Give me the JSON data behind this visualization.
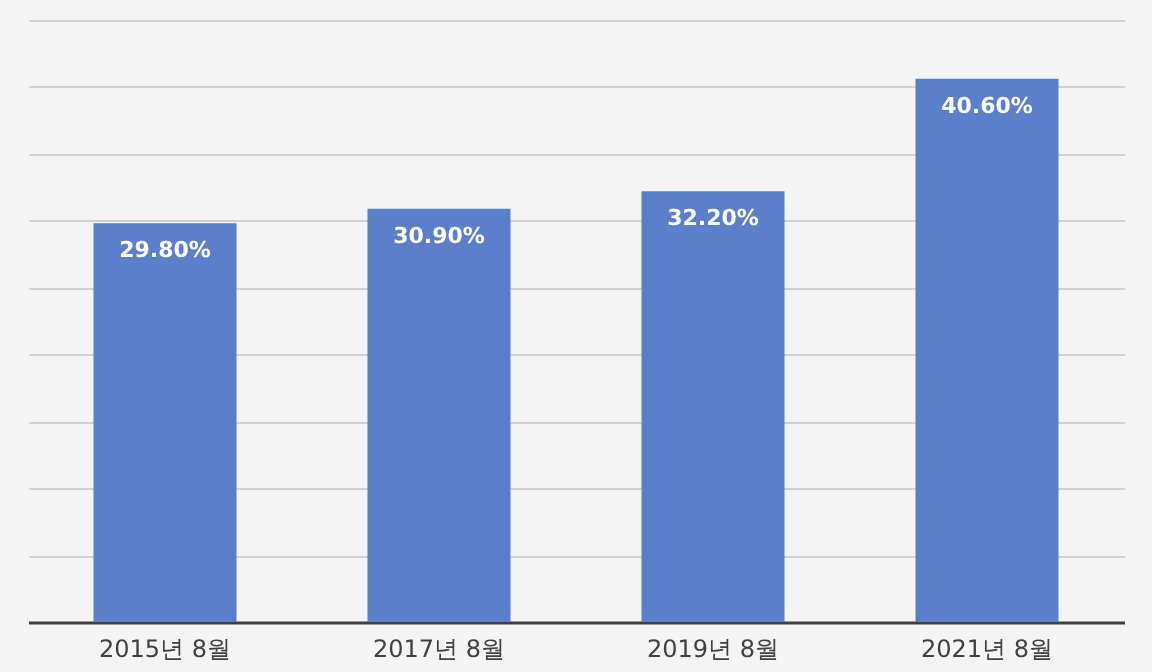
{
  "chart_data": {
    "type": "bar",
    "categories": [
      "2015년 8월",
      "2017년 8월",
      "2019년 8월",
      "2021년 8월"
    ],
    "values": [
      29.8,
      30.9,
      32.2,
      40.6
    ],
    "value_labels": [
      "29.80%",
      "30.90%",
      "32.20%",
      "40.60%"
    ],
    "color": "#5b7fcb",
    "ylim": [
      0,
      45
    ],
    "yticks": [
      {
        "value": 0,
        "label": null
      },
      {
        "value": 5,
        "label": null
      },
      {
        "value": 10,
        "label": null
      },
      {
        "value": 15,
        "label": null
      },
      {
        "value": 20,
        "label": null
      },
      {
        "value": 25,
        "label": null
      },
      {
        "value": 30,
        "label": null
      },
      {
        "value": 35,
        "label": null
      },
      {
        "value": 40,
        "label": null
      },
      {
        "value": 45,
        "label": null
      }
    ],
    "grid": "y",
    "tick_labels": "x"
  }
}
